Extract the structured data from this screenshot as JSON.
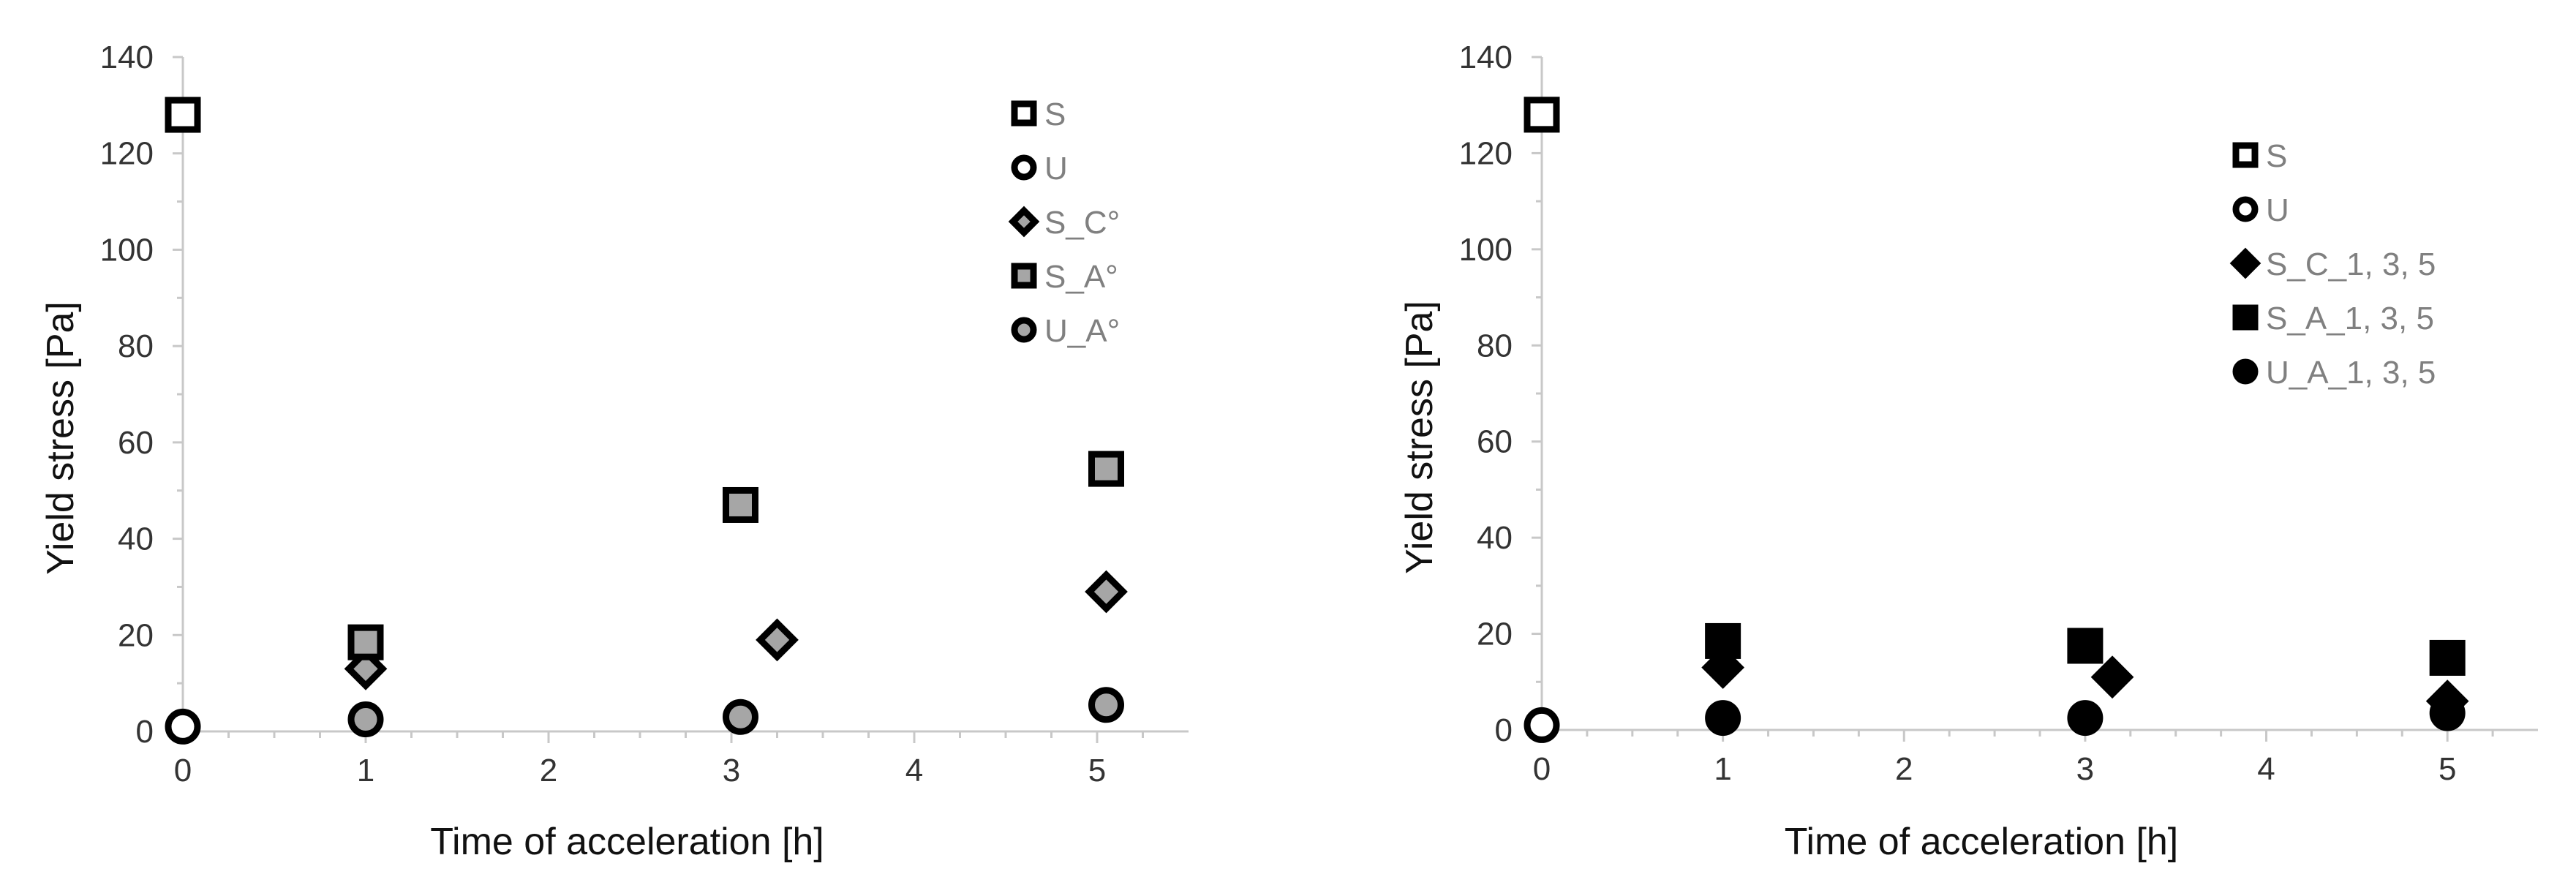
{
  "chart_data": [
    {
      "type": "scatter",
      "xlabel": "Time of acceleration [h]",
      "ylabel": "Yield stress [Pa]",
      "xlim": [
        0,
        5.5
      ],
      "ylim": [
        0,
        140
      ],
      "xticks": [
        0,
        1,
        2,
        3,
        4,
        5
      ],
      "yticks": [
        0,
        20,
        40,
        60,
        80,
        100,
        120,
        140
      ],
      "legend_position": "top-right",
      "series": [
        {
          "name": "S",
          "marker": "square-hollow",
          "fill": "#ffffff",
          "points": [
            [
              0,
              128
            ]
          ]
        },
        {
          "name": "U",
          "marker": "circle-hollow",
          "fill": "#ffffff",
          "points": [
            [
              0,
              1
            ]
          ]
        },
        {
          "name": "S_C°",
          "marker": "diamond-gray",
          "fill": "#a6a6a6",
          "points": [
            [
              1,
              13
            ],
            [
              3.25,
              19
            ],
            [
              5.05,
              29
            ]
          ]
        },
        {
          "name": "S_A°",
          "marker": "square-gray",
          "fill": "#a6a6a6",
          "points": [
            [
              1,
              18.5
            ],
            [
              3.05,
              47
            ],
            [
              5.05,
              54.5
            ]
          ]
        },
        {
          "name": "U_A°",
          "marker": "circle-gray",
          "fill": "#a6a6a6",
          "points": [
            [
              1,
              2.5
            ],
            [
              3.05,
              3
            ],
            [
              5.05,
              5.5
            ]
          ]
        }
      ]
    },
    {
      "type": "scatter",
      "xlabel": "Time of acceleration [h]",
      "ylabel": "Yield stress [Pa]",
      "xlim": [
        0,
        5.5
      ],
      "ylim": [
        0,
        140
      ],
      "xticks": [
        0,
        1,
        2,
        3,
        4,
        5
      ],
      "yticks": [
        0,
        20,
        40,
        60,
        80,
        100,
        120,
        140
      ],
      "legend_position": "top-right",
      "series": [
        {
          "name": "S",
          "marker": "square-hollow",
          "fill": "#ffffff",
          "points": [
            [
              0,
              128
            ]
          ]
        },
        {
          "name": "U",
          "marker": "circle-hollow",
          "fill": "#ffffff",
          "points": [
            [
              0,
              1
            ]
          ]
        },
        {
          "name": "S_C_1, 3, 5",
          "marker": "diamond-solid",
          "fill": "#000000",
          "points": [
            [
              1,
              13
            ],
            [
              3.15,
              11
            ],
            [
              5,
              6
            ]
          ]
        },
        {
          "name": "S_A_1, 3, 5",
          "marker": "square-solid",
          "fill": "#000000",
          "points": [
            [
              1,
              18.5
            ],
            [
              3,
              17.5
            ],
            [
              5,
              15
            ]
          ]
        },
        {
          "name": "U_A_1, 3, 5",
          "marker": "circle-solid",
          "fill": "#000000",
          "points": [
            [
              1,
              2.5
            ],
            [
              3,
              2.5
            ],
            [
              5,
              3.5
            ]
          ]
        }
      ]
    }
  ]
}
